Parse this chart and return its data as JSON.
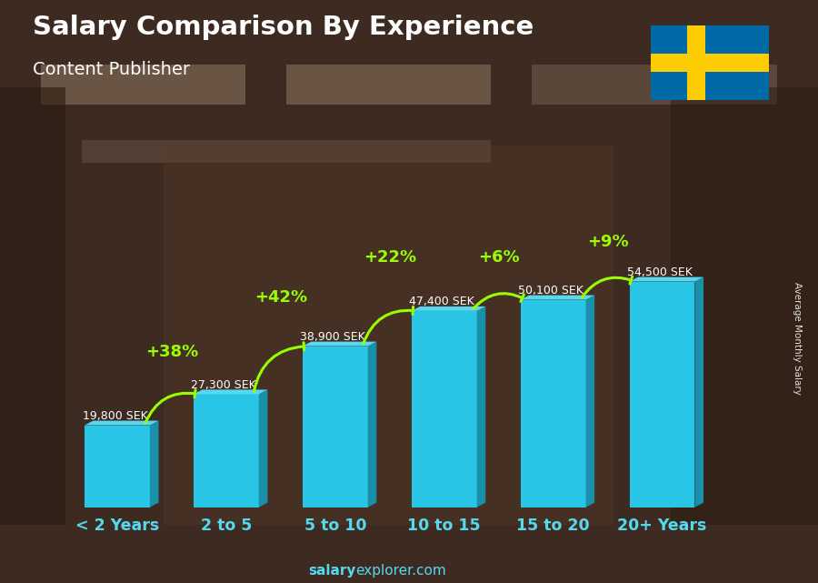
{
  "title": "Salary Comparison By Experience",
  "subtitle": "Content Publisher",
  "categories": [
    "< 2 Years",
    "2 to 5",
    "5 to 10",
    "10 to 15",
    "15 to 20",
    "20+ Years"
  ],
  "values": [
    19800,
    27300,
    38900,
    47400,
    50100,
    54500
  ],
  "labels": [
    "19,800 SEK",
    "27,300 SEK",
    "38,900 SEK",
    "47,400 SEK",
    "50,100 SEK",
    "54,500 SEK"
  ],
  "pct_changes": [
    null,
    "+38%",
    "+42%",
    "+22%",
    "+6%",
    "+9%"
  ],
  "bar_color_face": "#29C5E6",
  "bar_color_dark": "#1A8FAA",
  "bar_color_top": "#55D8F0",
  "bg_color": "#3d2b22",
  "title_color": "#ffffff",
  "label_color": "#ffffff",
  "pct_color": "#99FF00",
  "arrow_color": "#99FF00",
  "tick_color": "#55D8F0",
  "watermark_bold": "salary",
  "watermark_normal": "explorer.com",
  "watermark_color": "#55D8F0",
  "ylabel_text": "Average Monthly Salary",
  "figsize": [
    9.0,
    6.41
  ],
  "dpi": 100,
  "flag_blue": "#006AA7",
  "flag_yellow": "#FECC02"
}
